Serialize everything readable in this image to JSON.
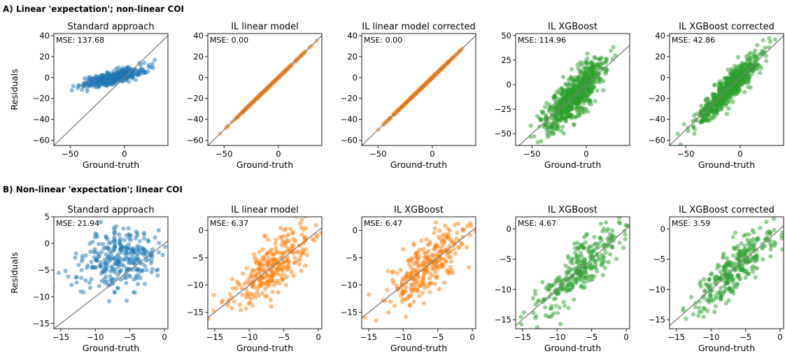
{
  "rows": [
    {
      "label": "A) Linear 'expectation'; non-linear COI",
      "ylabel": "Residuals"
    },
    {
      "label": "B) Non-linear 'expectation'; linear COI",
      "ylabel": "Residuals"
    }
  ],
  "chart_data": [
    {
      "type": "scatter",
      "row": 0,
      "title": "Standard approach",
      "xlabel": "Ground-truth",
      "ylabel": "Residuals",
      "annotation": "MSE: 137.68",
      "xlim": [
        -65,
        40
      ],
      "ylim": [
        -65,
        42
      ],
      "xticks": [
        -50,
        0
      ],
      "yticks": [
        -60,
        -40,
        -20,
        0,
        20,
        40
      ],
      "color": "#1f77b4",
      "pattern": "flat",
      "n_points": 400,
      "x_center": -10,
      "x_spread": 14,
      "y_center": 0,
      "slope": 0.25,
      "noise": 3,
      "diagonal": true
    },
    {
      "type": "scatter",
      "row": 0,
      "title": "IL linear model",
      "xlabel": "Ground-truth",
      "ylabel": "",
      "annotation": "MSE: 0.00",
      "xlim": [
        -65,
        40
      ],
      "ylim": [
        -65,
        42
      ],
      "xticks": [
        -50,
        0
      ],
      "yticks": [
        -60,
        -40,
        -20,
        0,
        20,
        40
      ],
      "color": "#ff7f0e",
      "pattern": "diagonal",
      "n_points": 400,
      "x_center": -10,
      "x_spread": 14,
      "noise": 0,
      "diagonal": true
    },
    {
      "type": "scatter",
      "row": 0,
      "title": "IL linear model corrected",
      "xlabel": "Ground-truth",
      "ylabel": "",
      "annotation": "MSE: 0.00",
      "xlim": [
        -65,
        40
      ],
      "ylim": [
        -65,
        42
      ],
      "xticks": [
        -50,
        0
      ],
      "yticks": [
        -60,
        -40,
        -20,
        0,
        20,
        40
      ],
      "color": "#ff7f0e",
      "pattern": "diagonal",
      "n_points": 400,
      "x_center": -10,
      "x_spread": 14,
      "noise": 0,
      "diagonal": true
    },
    {
      "type": "scatter",
      "row": 0,
      "title": "IL XGBoost",
      "xlabel": "Ground-truth",
      "ylabel": "",
      "annotation": "MSE: 114.96",
      "xlim": [
        -65,
        40
      ],
      "ylim": [
        -62,
        52
      ],
      "xticks": [
        -50,
        0
      ],
      "yticks": [
        -50,
        -25,
        0,
        25,
        50
      ],
      "color": "#2ca02c",
      "pattern": "diagonal",
      "n_points": 700,
      "x_center": -10,
      "x_spread": 14,
      "noise": 11,
      "diagonal": true
    },
    {
      "type": "scatter",
      "row": 0,
      "title": "IL XGBoost corrected",
      "xlabel": "Ground-truth",
      "ylabel": "",
      "annotation": "MSE: 42.86",
      "xlim": [
        -65,
        40
      ],
      "ylim": [
        -65,
        42
      ],
      "xticks": [
        -50,
        0
      ],
      "yticks": [
        -60,
        -40,
        -20,
        0,
        20,
        40
      ],
      "color": "#2ca02c",
      "pattern": "diagonal",
      "n_points": 700,
      "x_center": -10,
      "x_spread": 14,
      "noise": 6.5,
      "diagonal": true
    },
    {
      "type": "scatter",
      "row": 1,
      "title": "Standard approach",
      "xlabel": "Ground-truth",
      "ylabel": "Residuals",
      "annotation": "MSE: 21.94",
      "xlim": [
        -16,
        0.5
      ],
      "ylim": [
        -16,
        5
      ],
      "xticks": [
        -15,
        -10,
        -5,
        0
      ],
      "yticks": [
        -15,
        -10,
        -5,
        0,
        5
      ],
      "color": "#1f77b4",
      "pattern": "flat",
      "n_points": 300,
      "x_center": -6.5,
      "x_spread": 3,
      "y_center": -3,
      "slope": 0.15,
      "noise": 2.8,
      "diagonal": true
    },
    {
      "type": "scatter",
      "row": 1,
      "title": "IL linear model",
      "xlabel": "Ground-truth",
      "ylabel": "",
      "annotation": "MSE: 6.37",
      "xlim": [
        -16,
        0.5
      ],
      "ylim": [
        -18,
        2.5
      ],
      "xticks": [
        -15,
        -10,
        -5,
        0
      ],
      "yticks": [
        -15,
        -10,
        -5,
        0
      ],
      "color": "#ff7f0e",
      "pattern": "diagonal",
      "n_points": 300,
      "x_center": -6.5,
      "x_spread": 3,
      "noise": 2.5,
      "diagonal": true
    },
    {
      "type": "scatter",
      "row": 1,
      "title": "IL XGBoost",
      "xlabel": "Ground-truth",
      "ylabel": "",
      "annotation": "MSE: 6.47",
      "xlim": [
        -16,
        0.5
      ],
      "ylim": [
        -18,
        2.5
      ],
      "xticks": [
        -15,
        -10,
        -5,
        0
      ],
      "yticks": [
        -15,
        -10,
        -5,
        0
      ],
      "color": "#ff7f0e",
      "pattern": "diagonal",
      "n_points": 300,
      "x_center": -6.5,
      "x_spread": 3,
      "noise": 2.5,
      "diagonal": true
    },
    {
      "type": "scatter",
      "row": 1,
      "title": "IL XGBoost",
      "xlabel": "Ground-truth",
      "ylabel": "",
      "annotation": "MSE: 4.67",
      "xlim": [
        -16,
        0.5
      ],
      "ylim": [
        -16.5,
        2
      ],
      "xticks": [
        -15,
        -10,
        -5,
        0
      ],
      "yticks": [
        -15,
        -10,
        -5,
        0
      ],
      "color": "#2ca02c",
      "pattern": "diagonal",
      "n_points": 300,
      "x_center": -6.5,
      "x_spread": 3,
      "noise": 2.1,
      "diagonal": true
    },
    {
      "type": "scatter",
      "row": 1,
      "title": "IL XGBoost corrected",
      "xlabel": "Ground-truth",
      "ylabel": "",
      "annotation": "MSE: 3.59",
      "xlim": [
        -16,
        0.5
      ],
      "ylim": [
        -16.5,
        2
      ],
      "xticks": [
        -15,
        -10,
        -5,
        0
      ],
      "yticks": [
        -15,
        -10,
        -5,
        0
      ],
      "color": "#2ca02c",
      "pattern": "diagonal",
      "n_points": 300,
      "x_center": -6.5,
      "x_spread": 3,
      "noise": 1.9,
      "diagonal": true
    }
  ]
}
